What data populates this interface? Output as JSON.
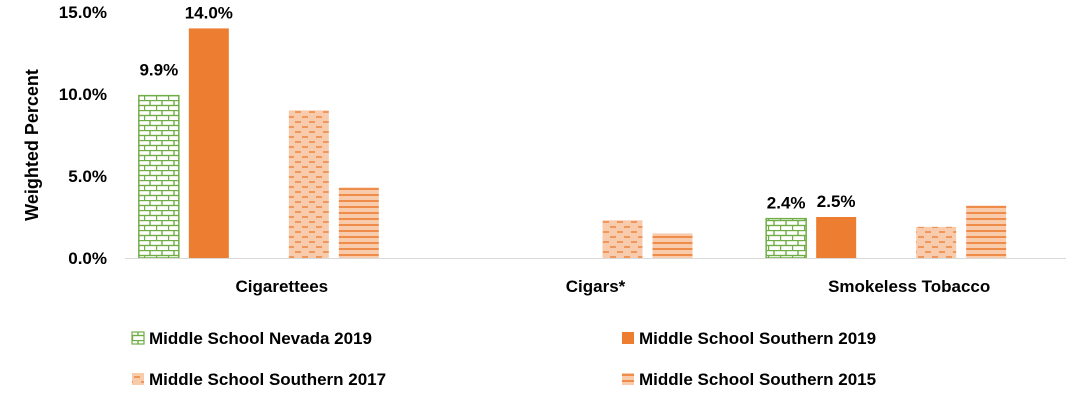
{
  "chart_data": {
    "type": "bar",
    "categories": [
      "Cigarettees",
      "Cigars*",
      "Smokeless Tobacco"
    ],
    "ylabel": "Weighted Percent",
    "ylim": [
      0,
      15
    ],
    "yticks": [
      "0.0%",
      "5.0%",
      "10.0%",
      "15.0%"
    ],
    "grid": false,
    "legend_position": "bottom",
    "series": [
      {
        "name": "Middle School Nevada 2019",
        "values": [
          9.9,
          null,
          2.4
        ],
        "labels": [
          "9.9%",
          "",
          "2.4%"
        ],
        "color": "#70ad47",
        "fill": "#ffffff",
        "pattern": "brick"
      },
      {
        "name": "Middle School Southern 2019",
        "values": [
          14.0,
          null,
          2.5
        ],
        "labels": [
          "14.0%",
          "",
          "2.5%"
        ],
        "color": "#ed7d31",
        "fill": "#ed7d31",
        "pattern": "solid"
      },
      {
        "name": "Middle School Southern 2017",
        "values": [
          9.0,
          2.3,
          1.9
        ],
        "labels": [
          "",
          "",
          ""
        ],
        "color": "#ed7d31",
        "fill": "#f8cbad",
        "pattern": "dashes"
      },
      {
        "name": "Middle School Southern 2015",
        "values": [
          4.3,
          1.5,
          3.2
        ],
        "labels": [
          "",
          "",
          ""
        ],
        "color": "#ed7d31",
        "fill": "#f8cbad",
        "pattern": "horizontal"
      }
    ]
  }
}
